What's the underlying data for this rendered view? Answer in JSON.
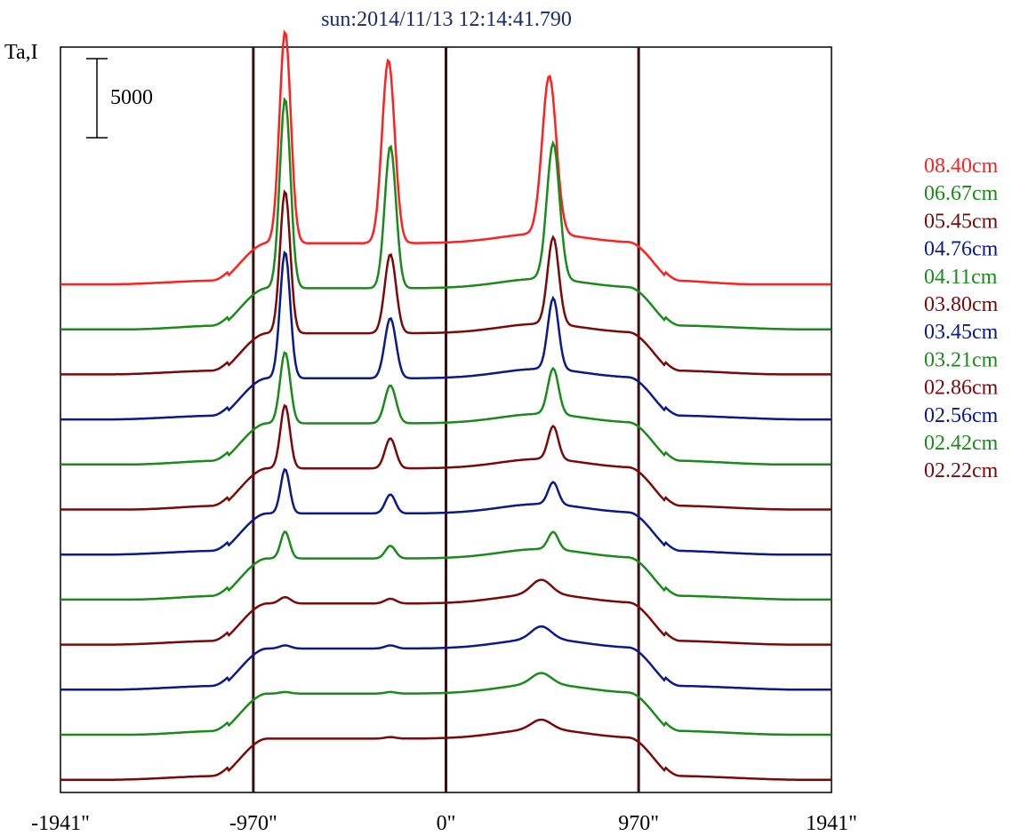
{
  "chart_data": {
    "type": "line",
    "title": "sun:2014/11/13 12:14:41.790",
    "ylabel": "Ta,I",
    "xlabel": "",
    "xlim": [
      -1941,
      1941
    ],
    "x_ticks": [
      "-1941\"",
      "-970\"",
      "0\"",
      "970\"",
      "1941\""
    ],
    "x_tick_values": [
      -1941,
      -970,
      0,
      970,
      1941
    ],
    "vlines": [
      -970,
      0,
      970
    ],
    "scale_bar": {
      "label": "5000",
      "value": 5000
    },
    "legend": [
      {
        "label": "08.40cm",
        "color": "#ff2020"
      },
      {
        "label": "06.67cm",
        "color": "#1a8a1a"
      },
      {
        "label": "05.45cm",
        "color": "#7a0a0a"
      },
      {
        "label": "04.76cm",
        "color": "#0a1a8a"
      },
      {
        "label": "04.11cm",
        "color": "#1a8a1a"
      },
      {
        "label": "03.80cm",
        "color": "#7a0a0a"
      },
      {
        "label": "03.45cm",
        "color": "#0a1a8a"
      },
      {
        "label": "03.21cm",
        "color": "#1a8a1a"
      },
      {
        "label": "02.86cm",
        "color": "#7a0a0a"
      },
      {
        "label": "02.56cm",
        "color": "#0a1a8a"
      },
      {
        "label": "02.42cm",
        "color": "#1a8a1a"
      },
      {
        "label": "02.22cm",
        "color": "#7a0a0a"
      }
    ],
    "series": [
      {
        "color": "#ff2020",
        "quiet_x": [
          -1700,
          1550
        ],
        "peaks": [
          {
            "x": -810,
            "h": 13400,
            "w": 40
          },
          {
            "x": -290,
            "h": 11600,
            "w": 45
          },
          {
            "x": 520,
            "h": 10000,
            "w": 50
          }
        ]
      },
      {
        "color": "#1a8a1a",
        "quiet_x": [
          -1600,
          1800
        ],
        "peaks": [
          {
            "x": -810,
            "h": 12000,
            "w": 38
          },
          {
            "x": -280,
            "h": 9000,
            "w": 40
          },
          {
            "x": 540,
            "h": 8600,
            "w": 45
          }
        ]
      },
      {
        "color": "#7a0a0a",
        "quiet_x": [
          -1700,
          1700
        ],
        "peaks": [
          {
            "x": -810,
            "h": 9000,
            "w": 36
          },
          {
            "x": -280,
            "h": 5000,
            "w": 40
          },
          {
            "x": 540,
            "h": 5500,
            "w": 40
          }
        ]
      },
      {
        "color": "#0a1a8a",
        "quiet_x": [
          -1700,
          1800
        ],
        "peaks": [
          {
            "x": -810,
            "h": 8000,
            "w": 36
          },
          {
            "x": -280,
            "h": 3800,
            "w": 40
          },
          {
            "x": 540,
            "h": 4500,
            "w": 38
          }
        ]
      },
      {
        "color": "#1a8a1a",
        "quiet_x": [
          -1600,
          1700
        ],
        "peaks": [
          {
            "x": -810,
            "h": 4500,
            "w": 36
          },
          {
            "x": -280,
            "h": 2400,
            "w": 40
          },
          {
            "x": 540,
            "h": 2900,
            "w": 38
          }
        ]
      },
      {
        "color": "#7a0a0a",
        "quiet_x": [
          -1600,
          1750
        ],
        "peaks": [
          {
            "x": -810,
            "h": 4000,
            "w": 34
          },
          {
            "x": -280,
            "h": 1900,
            "w": 38
          },
          {
            "x": 540,
            "h": 2100,
            "w": 36
          }
        ]
      },
      {
        "color": "#0a1a8a",
        "quiet_x": [
          -1700,
          1700
        ],
        "peaks": [
          {
            "x": -810,
            "h": 2800,
            "w": 32
          },
          {
            "x": -280,
            "h": 1200,
            "w": 36
          },
          {
            "x": 540,
            "h": 1400,
            "w": 36
          }
        ]
      },
      {
        "color": "#1a8a1a",
        "quiet_x": [
          -1600,
          1800
        ],
        "peaks": [
          {
            "x": -810,
            "h": 1700,
            "w": 32
          },
          {
            "x": -280,
            "h": 800,
            "w": 36
          },
          {
            "x": 540,
            "h": 1100,
            "w": 36
          }
        ]
      },
      {
        "color": "#7a0a0a",
        "quiet_x": [
          -1700,
          1750
        ],
        "peaks": [
          {
            "x": -810,
            "h": 400,
            "w": 40
          },
          {
            "x": -280,
            "h": 300,
            "w": 40
          },
          {
            "x": 480,
            "h": 900,
            "w": 70
          }
        ]
      },
      {
        "color": "#0a1a8a",
        "quiet_x": [
          -1700,
          1800
        ],
        "peaks": [
          {
            "x": -810,
            "h": 200,
            "w": 40
          },
          {
            "x": -280,
            "h": 200,
            "w": 40
          },
          {
            "x": 480,
            "h": 800,
            "w": 70
          }
        ]
      },
      {
        "color": "#1a8a1a",
        "quiet_x": [
          -1600,
          1750
        ],
        "peaks": [
          {
            "x": -810,
            "h": 100,
            "w": 40
          },
          {
            "x": -280,
            "h": 100,
            "w": 40
          },
          {
            "x": 480,
            "h": 700,
            "w": 70
          }
        ]
      },
      {
        "color": "#7a0a0a",
        "quiet_x": [
          -1700,
          1800
        ],
        "peaks": [
          {
            "x": -810,
            "h": 0,
            "w": 40
          },
          {
            "x": -280,
            "h": 100,
            "w": 40
          },
          {
            "x": 480,
            "h": 600,
            "w": 70
          }
        ]
      }
    ]
  }
}
